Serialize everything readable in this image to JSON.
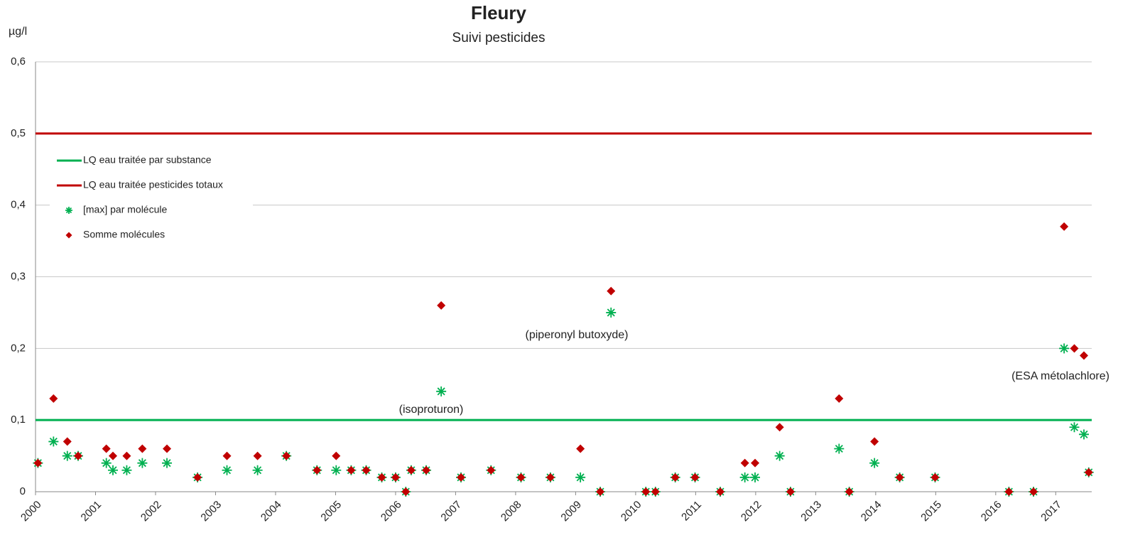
{
  "chart_data": {
    "type": "scatter",
    "title": "Fleury",
    "subtitle": "Suivi pesticides",
    "y_label": "µg/l",
    "x": [
      2000.04,
      2000.3,
      2000.53,
      2000.71,
      2001.18,
      2001.29,
      2001.52,
      2001.78,
      2002.19,
      2002.7,
      2003.19,
      2003.7,
      2004.18,
      2004.69,
      2005.01,
      2005.26,
      2005.51,
      2005.77,
      2006.0,
      2006.17,
      2006.26,
      2006.51,
      2006.76,
      2007.09,
      2007.59,
      2008.09,
      2008.58,
      2009.08,
      2009.41,
      2009.59,
      2010.17,
      2010.33,
      2010.66,
      2010.99,
      2011.41,
      2011.82,
      2011.99,
      2012.4,
      2012.58,
      2013.39,
      2013.56,
      2013.98,
      2014.4,
      2014.99,
      2016.22,
      2016.63,
      2017.14,
      2017.31,
      2017.47,
      2017.55
    ],
    "reference_lines": [
      {
        "name": "LQ eau traitée par substance",
        "color": "#00b050",
        "value": 0.1
      },
      {
        "name": "LQ eau traitée pesticides totaux",
        "color": "#c00000",
        "value": 0.5
      }
    ],
    "series": [
      {
        "name": "[max] par molécule",
        "color": "#00b050",
        "marker": "star",
        "values": [
          0.04,
          0.07,
          0.05,
          0.05,
          0.04,
          0.03,
          0.03,
          0.04,
          0.04,
          0.02,
          0.03,
          0.03,
          0.05,
          0.03,
          0.03,
          0.03,
          0.03,
          0.02,
          0.02,
          0,
          0.03,
          0.03,
          0.14,
          0.02,
          0.03,
          0.02,
          0.02,
          0.02,
          0,
          0.25,
          0,
          0,
          0.02,
          0.02,
          0,
          0.02,
          0.02,
          0.05,
          0,
          0.06,
          0,
          0.04,
          0.02,
          0.02,
          0,
          0,
          0.2,
          0.09,
          0.08,
          0.027
        ]
      },
      {
        "name": "Somme molécules",
        "color": "#c00000",
        "marker": "diamond",
        "values": [
          0.04,
          0.13,
          0.07,
          0.05,
          0.06,
          0.05,
          0.05,
          0.06,
          0.06,
          0.02,
          0.05,
          0.05,
          0.05,
          0.03,
          0.05,
          0.03,
          0.03,
          0.02,
          0.02,
          0,
          0.03,
          0.03,
          0.26,
          0.02,
          0.03,
          0.02,
          0.02,
          0.06,
          0,
          0.28,
          0,
          0,
          0.02,
          0.02,
          0,
          0.04,
          0.04,
          0.09,
          0,
          0.13,
          0,
          0.07,
          0.02,
          0.02,
          0,
          0,
          0.37,
          0.2,
          0.19,
          0.027
        ]
      }
    ],
    "annotations": [
      "(isoproturon)",
      "(piperonyl butoxyde)",
      "(ESA métolachlore)"
    ],
    "xlim": [
      2000,
      2017.6
    ],
    "xticks": [
      2000,
      2001,
      2002,
      2003,
      2004,
      2005,
      2006,
      2007,
      2008,
      2009,
      2010,
      2011,
      2012,
      2013,
      2014,
      2015,
      2016,
      2017
    ],
    "ylim": [
      0,
      0.6
    ],
    "yticks": [
      0,
      {
        "value": 0.1,
        "label": "0,1"
      },
      {
        "value": 0.2,
        "label": "0,2"
      },
      {
        "value": 0.3,
        "label": "0,3"
      },
      {
        "value": 0.4,
        "label": "0,4"
      },
      {
        "value": 0.5,
        "label": "0,5"
      },
      {
        "value": 0.6,
        "label": "0,6"
      }
    ],
    "grid": true,
    "legend": "upper left"
  }
}
